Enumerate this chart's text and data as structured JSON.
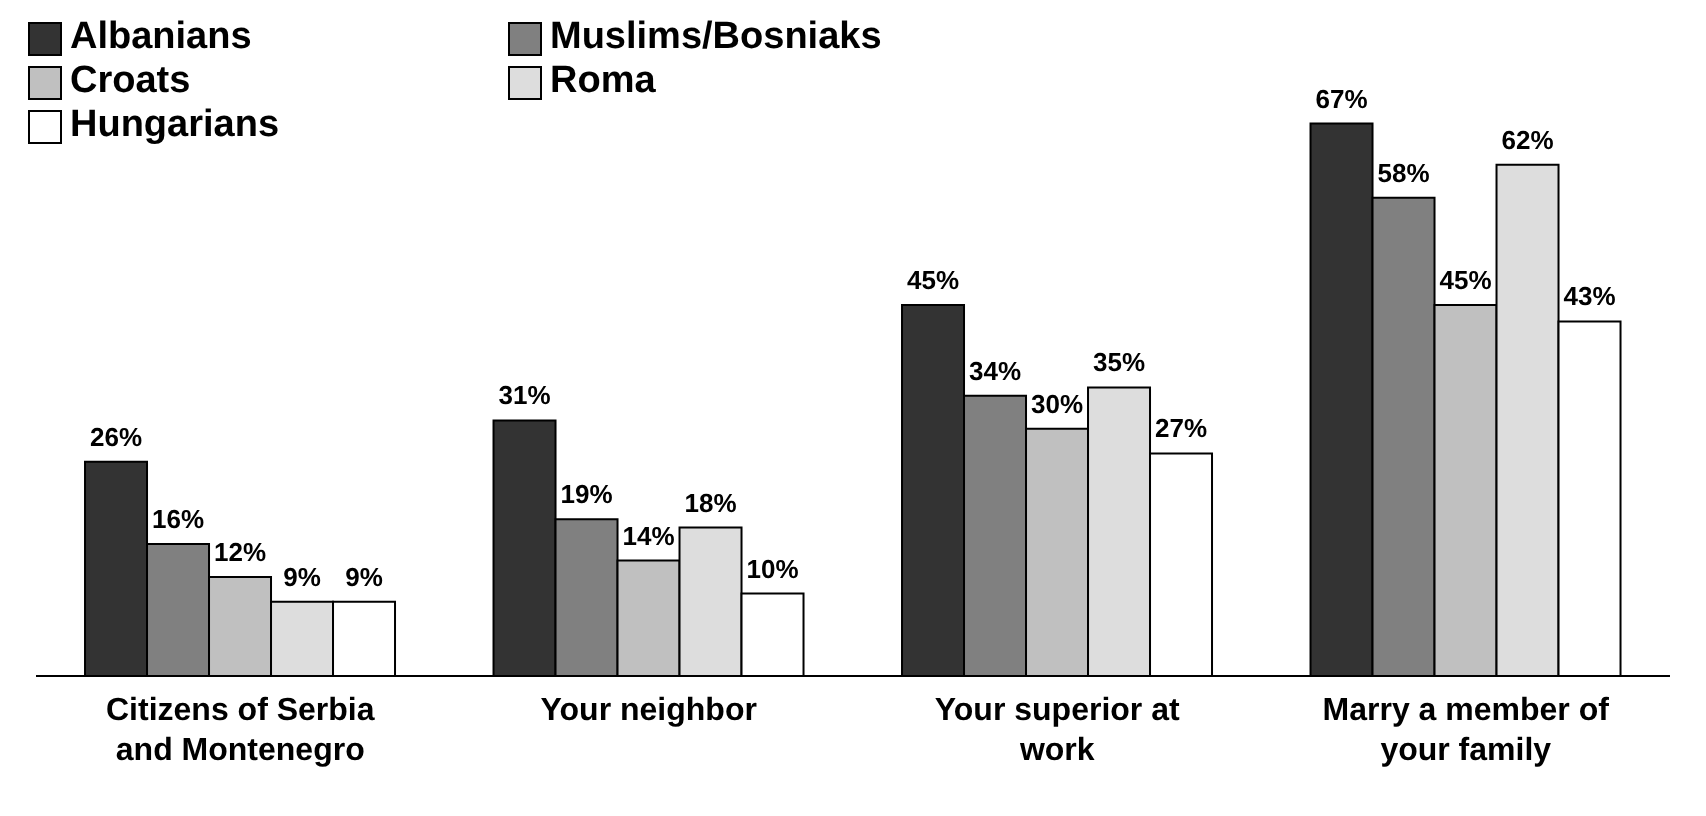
{
  "chart_data": {
    "type": "bar",
    "categories": [
      "Citizens of Serbia and Montenegro",
      "Your neighbor",
      "Your superior at work",
      "Marry a member of your family"
    ],
    "series": [
      {
        "name": "Albanians",
        "color": "#333333",
        "values": [
          26,
          31,
          45,
          67
        ],
        "value_labels": [
          "26%",
          "31%",
          "45%",
          "67%"
        ]
      },
      {
        "name": "Muslims/Bosniaks",
        "color": "#808080",
        "values": [
          16,
          19,
          34,
          58
        ],
        "value_labels": [
          "16%",
          "19%",
          "34%",
          "58%"
        ]
      },
      {
        "name": "Croats",
        "color": "#c0c0c0",
        "values": [
          12,
          14,
          30,
          45
        ],
        "value_labels": [
          "12%",
          "14%",
          "30%",
          "45%"
        ]
      },
      {
        "name": "Roma",
        "color": "#dddddd",
        "values": [
          9,
          18,
          35,
          62
        ],
        "value_labels": [
          "9%",
          "18%",
          "35%",
          "62%"
        ]
      },
      {
        "name": "Hungarians",
        "color": "#ffffff",
        "values": [
          9,
          10,
          27,
          43
        ],
        "value_labels": [
          "9%",
          "10%",
          "27%",
          "43%"
        ]
      }
    ],
    "legend": "top left",
    "grid": false
  }
}
